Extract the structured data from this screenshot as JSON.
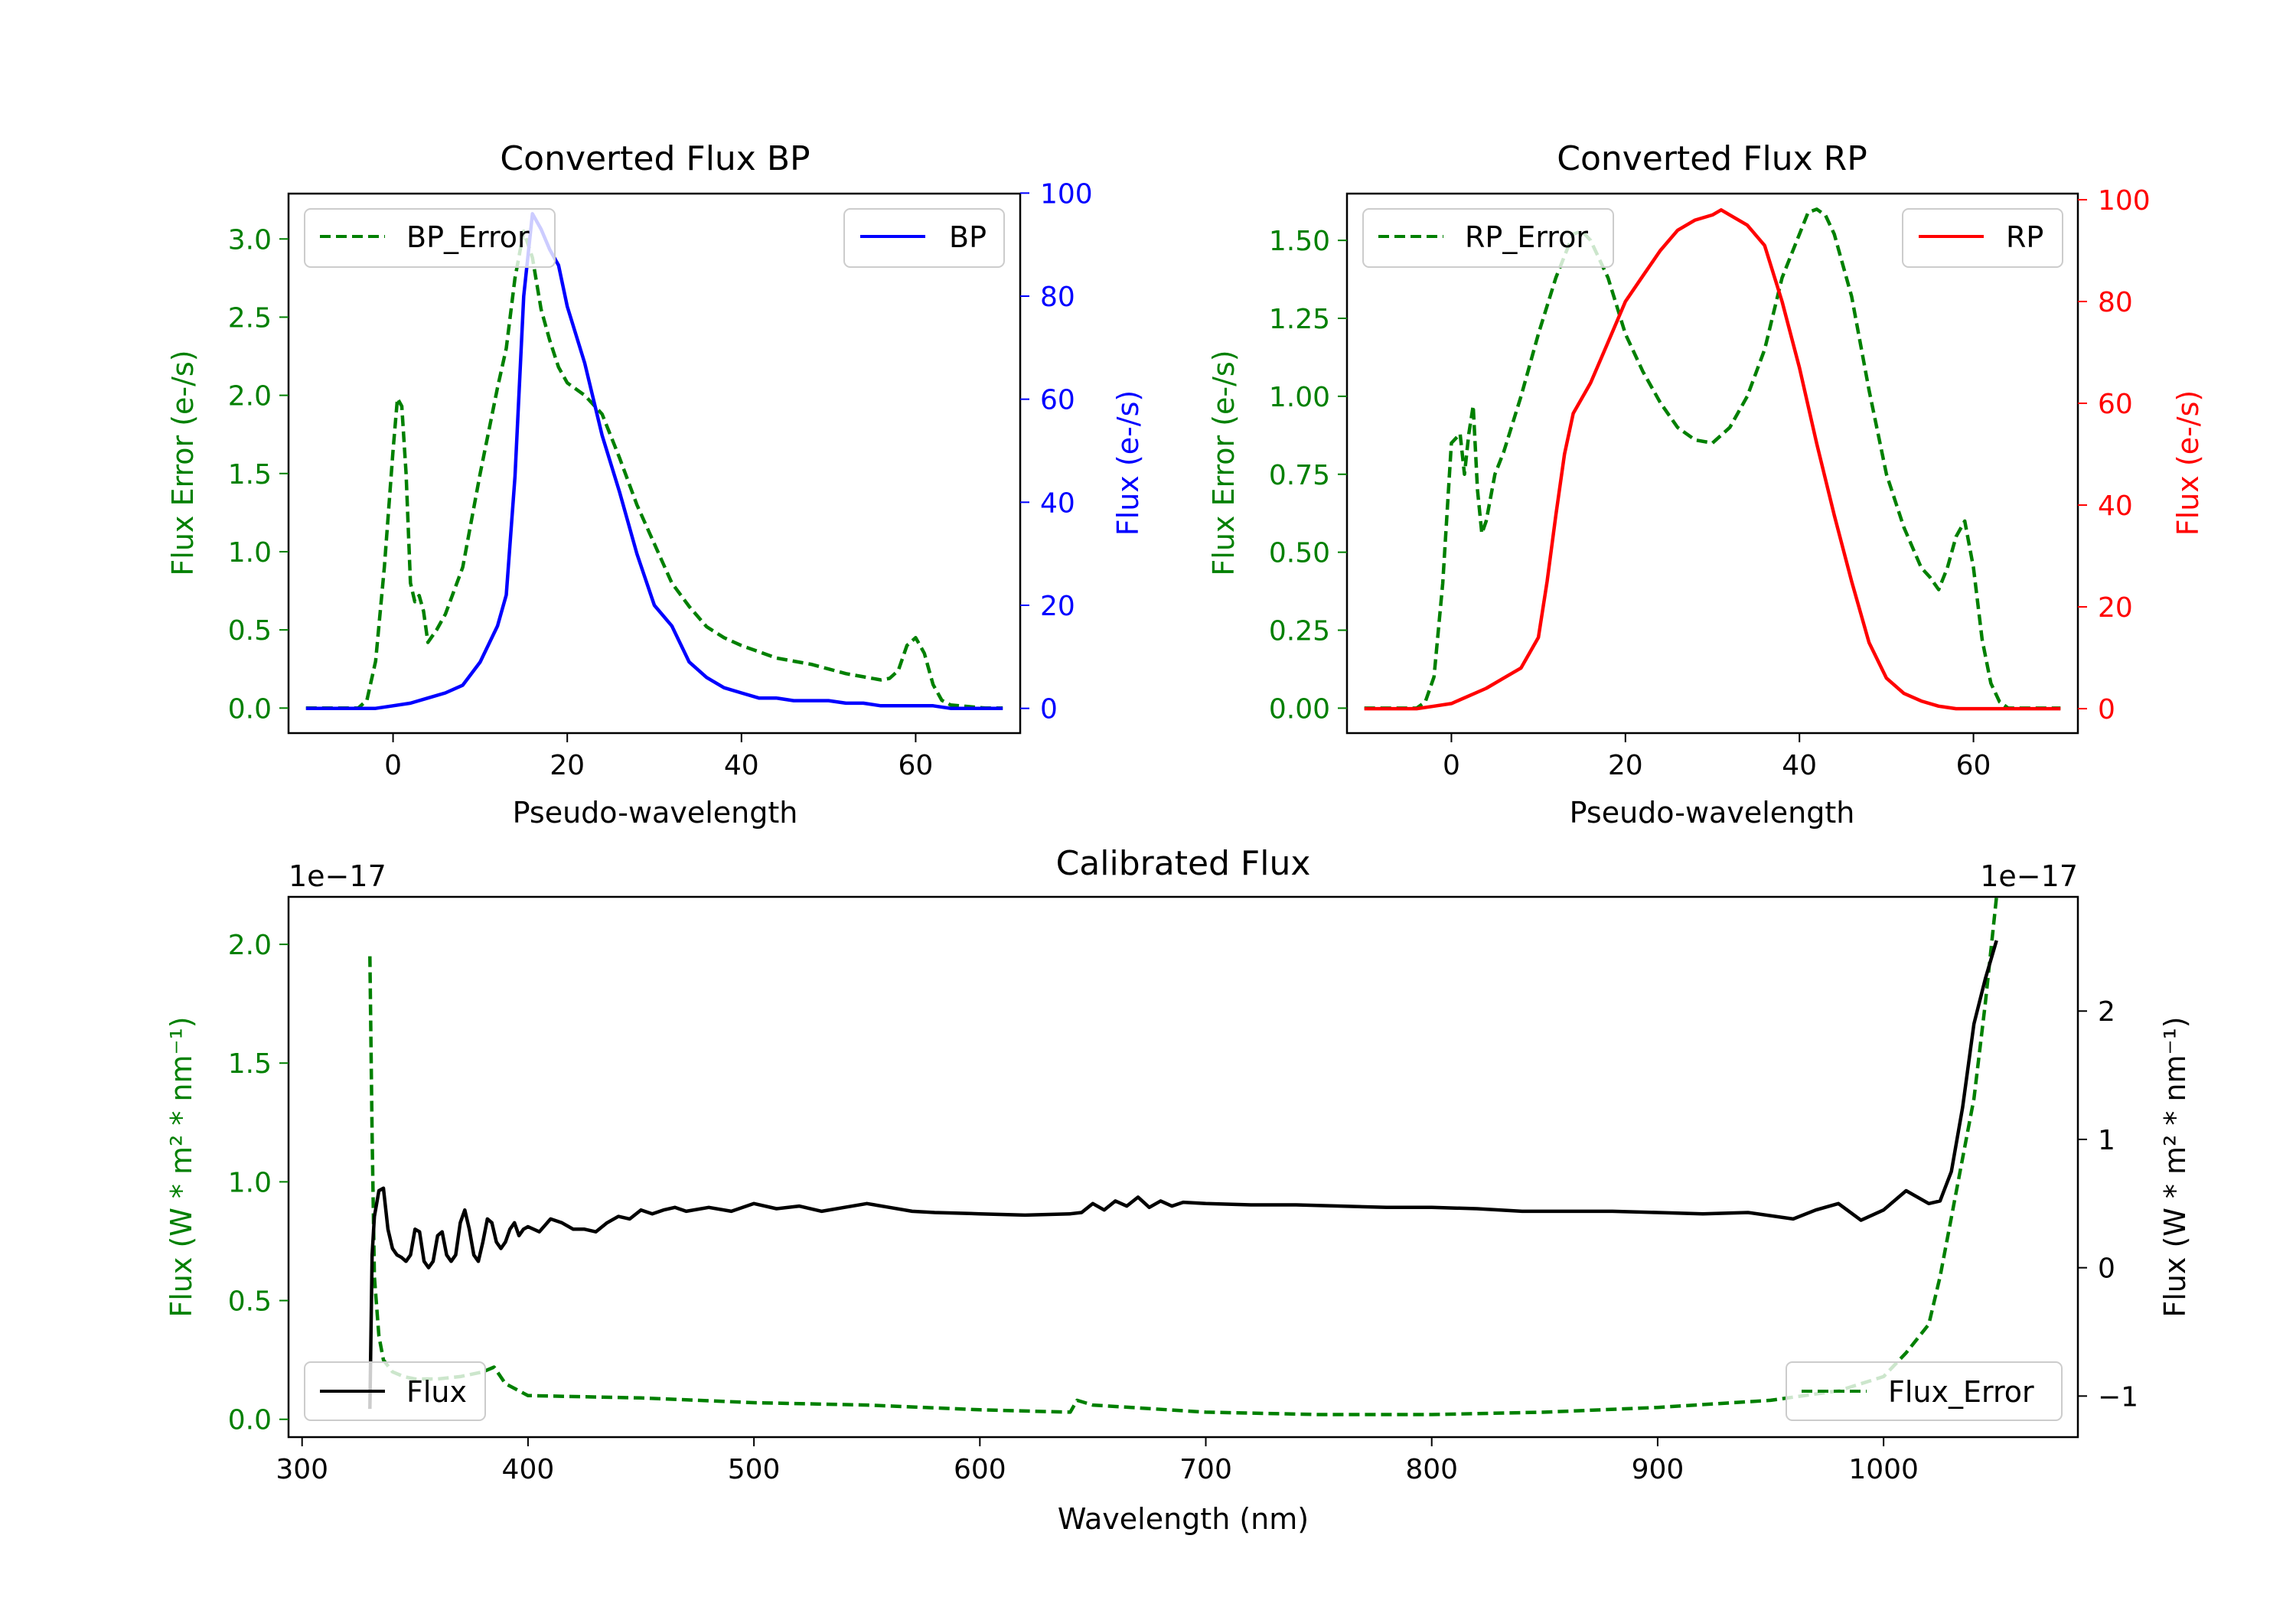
{
  "colors": {
    "bp": "#0000ff",
    "rp": "#ff0000",
    "error": "#008000",
    "flux": "#000000"
  },
  "chart_data": [
    {
      "type": "line",
      "title": "Converted Flux BP",
      "xlabel": "Pseudo-wavelength",
      "ylabel_left": "Flux Error (e-/s)",
      "ylabel_right": "Flux (e-/s)",
      "xlim": [
        -12,
        72
      ],
      "ylim_left": [
        -0.16,
        3.29
      ],
      "ylim_right": [
        -4.8,
        99.9
      ],
      "xticks": [
        0,
        20,
        40,
        60
      ],
      "yticks_left": [
        "0.0",
        "0.5",
        "1.0",
        "1.5",
        "2.0",
        "2.5",
        "3.0"
      ],
      "yticks_right": [
        "0",
        "20",
        "40",
        "60",
        "80",
        "100"
      ],
      "legend_left": "BP_Error",
      "legend_right": "BP",
      "series": [
        {
          "name": "BP_Error",
          "axis": "left",
          "style": "dashed",
          "color": "#008000",
          "x": [
            -10,
            -4,
            -3,
            -2,
            -1,
            0,
            0.5,
            1,
            1.5,
            2,
            2.5,
            3,
            3.5,
            4,
            5,
            6,
            8,
            10,
            12,
            13,
            14,
            15,
            16,
            17,
            18,
            19,
            20,
            22,
            24,
            26,
            28,
            30,
            32,
            34,
            36,
            38,
            40,
            42,
            44,
            46,
            48,
            50,
            52,
            54,
            56,
            57,
            58,
            59,
            60,
            61,
            62,
            63,
            64,
            66,
            68,
            70
          ],
          "y": [
            0,
            0,
            0.05,
            0.3,
            0.9,
            1.65,
            1.98,
            1.93,
            1.5,
            0.8,
            0.68,
            0.72,
            0.62,
            0.42,
            0.5,
            0.6,
            0.9,
            1.5,
            2.05,
            2.3,
            2.75,
            3.05,
            2.88,
            2.55,
            2.35,
            2.18,
            2.08,
            2.0,
            1.88,
            1.6,
            1.3,
            1.05,
            0.8,
            0.65,
            0.52,
            0.45,
            0.4,
            0.36,
            0.32,
            0.3,
            0.28,
            0.25,
            0.22,
            0.2,
            0.18,
            0.19,
            0.24,
            0.4,
            0.45,
            0.35,
            0.15,
            0.05,
            0.02,
            0.01,
            0,
            0
          ]
        },
        {
          "name": "BP",
          "axis": "right",
          "style": "solid",
          "color": "#0000ff",
          "x": [
            -10,
            -4,
            -2,
            0,
            2,
            4,
            6,
            8,
            10,
            12,
            13,
            14,
            15,
            16,
            17,
            18,
            19,
            20,
            22,
            24,
            26,
            28,
            30,
            32,
            34,
            36,
            38,
            40,
            42,
            44,
            46,
            48,
            50,
            52,
            54,
            56,
            58,
            60,
            62,
            64,
            66,
            68,
            70
          ],
          "y": [
            0,
            0,
            0,
            0.5,
            1,
            2,
            3,
            4.5,
            9,
            16,
            22,
            45,
            80,
            96,
            93,
            89,
            86,
            78,
            67,
            53,
            42,
            30,
            20,
            16,
            9,
            6,
            4,
            3,
            2,
            2,
            1.5,
            1.5,
            1.5,
            1,
            1,
            0.5,
            0.5,
            0.5,
            0.5,
            0,
            0,
            0,
            0
          ]
        }
      ]
    },
    {
      "type": "line",
      "title": "Converted Flux RP",
      "xlabel": "Pseudo-wavelength",
      "ylabel_left": "Flux Error (e-/s)",
      "ylabel_right": "Flux (e-/s)",
      "xlim": [
        -12,
        72
      ],
      "ylim_left": [
        -0.08,
        1.65
      ],
      "ylim_right": [
        -4.8,
        101.2
      ],
      "xticks": [
        0,
        20,
        40,
        60
      ],
      "yticks_left": [
        "0.00",
        "0.25",
        "0.50",
        "0.75",
        "1.00",
        "1.25",
        "1.50"
      ],
      "yticks_right": [
        "0",
        "20",
        "40",
        "60",
        "80",
        "100"
      ],
      "legend_left": "RP_Error",
      "legend_right": "RP",
      "series": [
        {
          "name": "RP_Error",
          "axis": "left",
          "style": "dashed",
          "color": "#008000",
          "x": [
            -10,
            -4,
            -3,
            -2,
            -1,
            0,
            1,
            1.5,
            2,
            2.5,
            3,
            3.5,
            4,
            5,
            6,
            8,
            10,
            12,
            14,
            15,
            16,
            18,
            20,
            22,
            24,
            26,
            28,
            30,
            32,
            34,
            36,
            38,
            40,
            41,
            42,
            43,
            44,
            46,
            48,
            50,
            52,
            54,
            55,
            56,
            57,
            58,
            59,
            60,
            61,
            62,
            63,
            64,
            66,
            68,
            70
          ],
          "y": [
            0,
            0,
            0.02,
            0.1,
            0.4,
            0.85,
            0.88,
            0.75,
            0.88,
            0.97,
            0.7,
            0.56,
            0.6,
            0.75,
            0.82,
            1.0,
            1.2,
            1.38,
            1.52,
            1.53,
            1.5,
            1.38,
            1.2,
            1.08,
            0.98,
            0.9,
            0.86,
            0.85,
            0.9,
            1.0,
            1.15,
            1.38,
            1.52,
            1.59,
            1.6,
            1.58,
            1.52,
            1.32,
            1.02,
            0.75,
            0.58,
            0.45,
            0.42,
            0.38,
            0.45,
            0.55,
            0.6,
            0.45,
            0.22,
            0.08,
            0.02,
            0.0,
            0,
            0,
            0
          ]
        },
        {
          "name": "RP",
          "axis": "right",
          "style": "solid",
          "color": "#ff0000",
          "x": [
            -10,
            -4,
            -2,
            0,
            2,
            4,
            6,
            8,
            10,
            11,
            12,
            13,
            14,
            16,
            18,
            20,
            22,
            24,
            26,
            28,
            30,
            31,
            32,
            33,
            34,
            36,
            38,
            40,
            42,
            44,
            46,
            48,
            50,
            52,
            54,
            56,
            58,
            60,
            62,
            64,
            66,
            68,
            70
          ],
          "y": [
            0,
            0,
            0.5,
            1,
            2.5,
            4,
            6,
            8,
            14,
            25,
            38,
            50,
            58,
            64,
            72,
            80,
            85,
            90,
            94,
            96,
            97,
            98,
            97,
            96,
            95,
            91,
            80,
            67,
            52,
            38,
            25,
            13,
            6,
            3,
            1.5,
            0.5,
            0,
            0,
            0,
            0,
            0,
            0,
            0
          ]
        }
      ]
    },
    {
      "type": "line",
      "title": "Calibrated Flux",
      "xlabel": "Wavelength (nm)",
      "ylabel_left": "Flux (W * m² * nm⁻¹)",
      "ylabel_right": "Flux (W * m² * nm⁻¹)",
      "offset_left": "1e−17",
      "offset_right": "1e−17",
      "xlim": [
        294,
        1086
      ],
      "ylim_left": [
        -0.075,
        2.2
      ],
      "ylim_right": [
        -1.32,
        2.89
      ],
      "xticks": [
        300,
        400,
        500,
        600,
        700,
        800,
        900,
        1000
      ],
      "yticks_left": [
        "0.0",
        "0.5",
        "1.0",
        "1.5",
        "2.0"
      ],
      "yticks_right": [
        "−1",
        "0",
        "1",
        "2"
      ],
      "legend_left": "Flux",
      "legend_right": "Flux_Error",
      "series": [
        {
          "name": "Flux_Error",
          "axis": "left",
          "style": "dashed",
          "color": "#008000",
          "x": [
            330,
            331,
            332,
            334,
            336,
            340,
            345,
            350,
            360,
            370,
            380,
            385,
            390,
            400,
            450,
            500,
            550,
            600,
            640,
            643,
            650,
            700,
            750,
            800,
            850,
            900,
            950,
            980,
            1000,
            1010,
            1020,
            1025,
            1030,
            1035,
            1040,
            1045,
            1050
          ],
          "y": [
            1.95,
            1.2,
            0.6,
            0.35,
            0.25,
            0.2,
            0.18,
            0.17,
            0.17,
            0.18,
            0.2,
            0.22,
            0.15,
            0.1,
            0.09,
            0.07,
            0.06,
            0.04,
            0.03,
            0.08,
            0.06,
            0.03,
            0.02,
            0.02,
            0.03,
            0.05,
            0.08,
            0.12,
            0.18,
            0.28,
            0.4,
            0.6,
            0.85,
            1.1,
            1.35,
            1.75,
            2.2
          ]
        },
        {
          "name": "Flux",
          "axis": "right",
          "style": "solid",
          "color": "#000000",
          "x": [
            330,
            331,
            332,
            334,
            336,
            338,
            340,
            342,
            344,
            346,
            348,
            350,
            352,
            354,
            356,
            358,
            360,
            362,
            364,
            366,
            368,
            370,
            372,
            374,
            376,
            378,
            380,
            382,
            384,
            386,
            388,
            390,
            392,
            394,
            396,
            398,
            400,
            405,
            410,
            415,
            420,
            425,
            430,
            435,
            440,
            445,
            450,
            455,
            460,
            465,
            470,
            480,
            490,
            500,
            510,
            520,
            530,
            540,
            550,
            560,
            570,
            580,
            600,
            620,
            640,
            645,
            650,
            655,
            660,
            665,
            670,
            675,
            680,
            685,
            690,
            700,
            720,
            740,
            760,
            780,
            800,
            820,
            840,
            860,
            880,
            900,
            920,
            940,
            960,
            970,
            980,
            990,
            1000,
            1010,
            1020,
            1025,
            1030,
            1035,
            1040,
            1045,
            1050
          ],
          "y": [
            -1.1,
            0.1,
            0.4,
            0.6,
            0.62,
            0.3,
            0.15,
            0.1,
            0.08,
            0.05,
            0.1,
            0.3,
            0.28,
            0.05,
            0.0,
            0.05,
            0.25,
            0.28,
            0.1,
            0.05,
            0.1,
            0.35,
            0.45,
            0.3,
            0.1,
            0.05,
            0.2,
            0.38,
            0.35,
            0.2,
            0.15,
            0.2,
            0.3,
            0.35,
            0.25,
            0.3,
            0.32,
            0.28,
            0.38,
            0.35,
            0.3,
            0.3,
            0.28,
            0.35,
            0.4,
            0.38,
            0.45,
            0.42,
            0.45,
            0.47,
            0.44,
            0.47,
            0.44,
            0.5,
            0.46,
            0.48,
            0.44,
            0.47,
            0.5,
            0.47,
            0.44,
            0.43,
            0.42,
            0.41,
            0.42,
            0.43,
            0.5,
            0.45,
            0.52,
            0.48,
            0.55,
            0.47,
            0.52,
            0.48,
            0.51,
            0.5,
            0.49,
            0.49,
            0.48,
            0.47,
            0.47,
            0.46,
            0.44,
            0.44,
            0.44,
            0.43,
            0.42,
            0.43,
            0.38,
            0.45,
            0.5,
            0.37,
            0.45,
            0.6,
            0.5,
            0.52,
            0.75,
            1.25,
            1.9,
            2.25,
            2.55
          ]
        }
      ]
    }
  ]
}
